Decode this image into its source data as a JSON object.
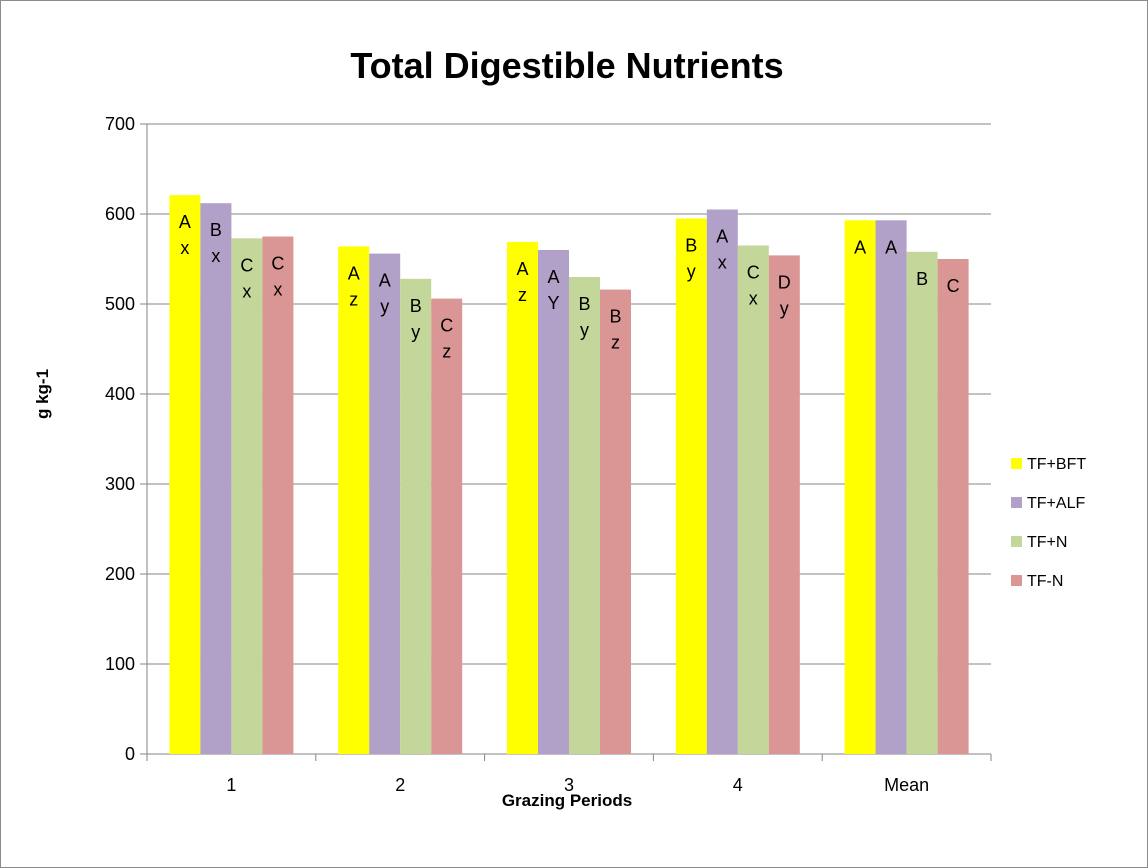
{
  "chart_data": {
    "type": "bar",
    "title": "Total Digestible Nutrients",
    "xlabel": "Grazing Periods",
    "ylabel": "g kg-1",
    "ylim": [
      0,
      700
    ],
    "yticks": [
      "0",
      "100",
      "200",
      "300",
      "400",
      "500",
      "600",
      "700"
    ],
    "ytick_values": [
      0,
      100,
      200,
      300,
      400,
      500,
      600,
      700
    ],
    "grid": true,
    "legend_position": "right",
    "categories": [
      "1",
      "2",
      "3",
      "4",
      "Mean"
    ],
    "series": [
      {
        "name": "TF+BFT",
        "color": "#ffff00",
        "values": [
          621,
          564,
          569,
          595,
          593
        ],
        "labels": [
          [
            "A",
            "x"
          ],
          [
            "A",
            "z"
          ],
          [
            "A",
            "z"
          ],
          [
            "B",
            "y"
          ],
          [
            "A"
          ]
        ]
      },
      {
        "name": "TF+ALF",
        "color": "#b1a0c7",
        "values": [
          612,
          556,
          560,
          605,
          593
        ],
        "labels": [
          [
            "B",
            "x"
          ],
          [
            "A",
            "y"
          ],
          [
            "A",
            "Y"
          ],
          [
            "A",
            "x"
          ],
          [
            "A"
          ]
        ]
      },
      {
        "name": "TF+N",
        "color": "#c4d79b",
        "values": [
          573,
          528,
          530,
          565,
          558
        ],
        "labels": [
          [
            "C",
            "x"
          ],
          [
            "B",
            "y"
          ],
          [
            "B",
            "y"
          ],
          [
            "C",
            "x"
          ],
          [
            "B"
          ]
        ]
      },
      {
        "name": "TF-N",
        "color": "#da9694",
        "values": [
          575,
          506,
          516,
          554,
          550
        ],
        "labels": [
          [
            "C",
            "x"
          ],
          [
            "C",
            "z"
          ],
          [
            "B",
            "z"
          ],
          [
            "D",
            "y"
          ],
          [
            "C"
          ]
        ]
      }
    ]
  }
}
